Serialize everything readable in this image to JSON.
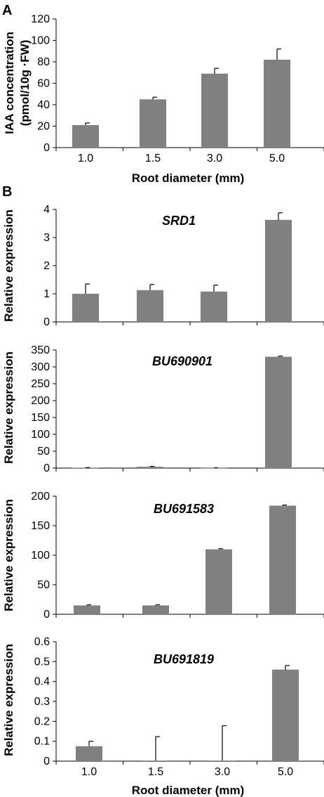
{
  "chart_data": [
    {
      "panel": "A",
      "type": "bar",
      "categories": [
        "1.0",
        "1.5",
        "3.0",
        "5.0"
      ],
      "values": [
        21,
        45,
        69,
        82
      ],
      "errors": [
        2,
        2,
        5,
        10
      ],
      "yticks": [
        "0",
        "20",
        "40",
        "60",
        "80",
        "100",
        "120"
      ],
      "ylim": [
        0,
        120
      ],
      "ylabel_line1": "IAA concentration",
      "ylabel_line2": "(pmol/10g ·FW)",
      "xlabel": "Root diameter (mm)",
      "title": ""
    },
    {
      "panel": "B",
      "type": "bar",
      "gene": "SRD1",
      "categories": [
        "1.0",
        "1.5",
        "3.0",
        "5.0"
      ],
      "values": [
        1.0,
        1.13,
        1.08,
        3.63
      ],
      "errors": [
        0.35,
        0.2,
        0.23,
        0.25
      ],
      "yticks": [
        "0",
        "1",
        "2",
        "3",
        "4"
      ],
      "ylim": [
        0,
        4
      ],
      "ylabel": "Relative expression"
    },
    {
      "type": "bar",
      "gene": "BU690901",
      "categories": [
        "1.0",
        "1.5",
        "3.0",
        "5.0"
      ],
      "values": [
        1,
        4,
        0.5,
        330
      ],
      "errors": [
        0.5,
        1,
        0.3,
        2
      ],
      "yticks": [
        "0",
        "50",
        "100",
        "150",
        "200",
        "250",
        "300",
        "350"
      ],
      "ylim": [
        0,
        350
      ],
      "ylabel": "Relative expression"
    },
    {
      "type": "bar",
      "gene": "BU691583",
      "categories": [
        "1.0",
        "1.5",
        "3.0",
        "5.0"
      ],
      "values": [
        15,
        15,
        110,
        184
      ],
      "errors": [
        1,
        1,
        1,
        1
      ],
      "yticks": [
        "0",
        "50",
        "100",
        "150",
        "200"
      ],
      "ylim": [
        0,
        200
      ],
      "ylabel": "Relative expression"
    },
    {
      "type": "bar",
      "gene": "BU691819",
      "categories": [
        "1.0",
        "1.5",
        "3.0",
        "5.0"
      ],
      "values": [
        0.075,
        0.003,
        0.003,
        0.46
      ],
      "errors": [
        0.025,
        0.12,
        0.175,
        0.02
      ],
      "yticks": [
        "0",
        "0.1",
        "0.2",
        "0.3",
        "0.4",
        "0.5",
        "0.6"
      ],
      "ylim": [
        0,
        0.6
      ],
      "ylabel": "Relative expression",
      "xlabel": "Root diameter (mm)"
    }
  ]
}
